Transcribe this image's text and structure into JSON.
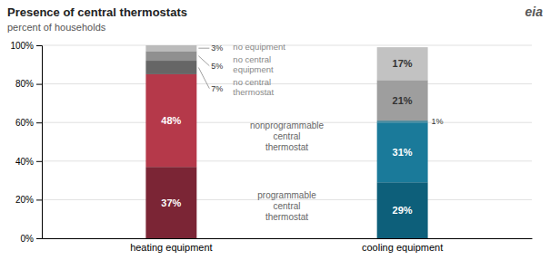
{
  "chart_data": {
    "type": "bar",
    "stacked": true,
    "data_labels": true,
    "grid": true,
    "title": "Presence of central thermostats",
    "subtitle": "percent of households",
    "annotations": [
      "eia"
    ],
    "categories": [
      "heating equipment",
      "cooling equipment"
    ],
    "series": [
      {
        "name": "programmable\ncentral\nthermostat",
        "colors": [
          "#7B2535",
          "#0D5F7A"
        ],
        "values": [
          37,
          29
        ],
        "value_labels": [
          "37%",
          "29%"
        ]
      },
      {
        "name": "nonprogrammable\ncentral\nthermostat",
        "colors": [
          "#B5394A",
          "#1A7A9A"
        ],
        "values": [
          48,
          31
        ],
        "value_labels": [
          "48%",
          "31%"
        ]
      },
      {
        "name": "no central\nthermostat",
        "colors": [
          "#666666",
          "#4A8A9E"
        ],
        "values": [
          7,
          1
        ],
        "value_labels": [
          "7%",
          "1%"
        ]
      },
      {
        "name": "no central\nequipment",
        "colors": [
          "#909090",
          "#9E9E9E"
        ],
        "values": [
          5,
          21
        ],
        "value_labels": [
          "5%",
          "21%"
        ]
      },
      {
        "name": "no equipment",
        "colors": [
          "#BBBBBB",
          "#C2C2C2"
        ],
        "values": [
          3,
          17
        ],
        "value_labels": [
          "3%",
          "17%"
        ]
      }
    ],
    "ylim": [
      0,
      100
    ],
    "yticks": [
      {
        "value": 0,
        "label": "0%"
      },
      {
        "value": 20,
        "label": "20%"
      },
      {
        "value": 40,
        "label": "40%"
      },
      {
        "value": 60,
        "label": "60%"
      },
      {
        "value": 80,
        "label": "80%"
      },
      {
        "value": 100,
        "label": "100%"
      }
    ]
  }
}
